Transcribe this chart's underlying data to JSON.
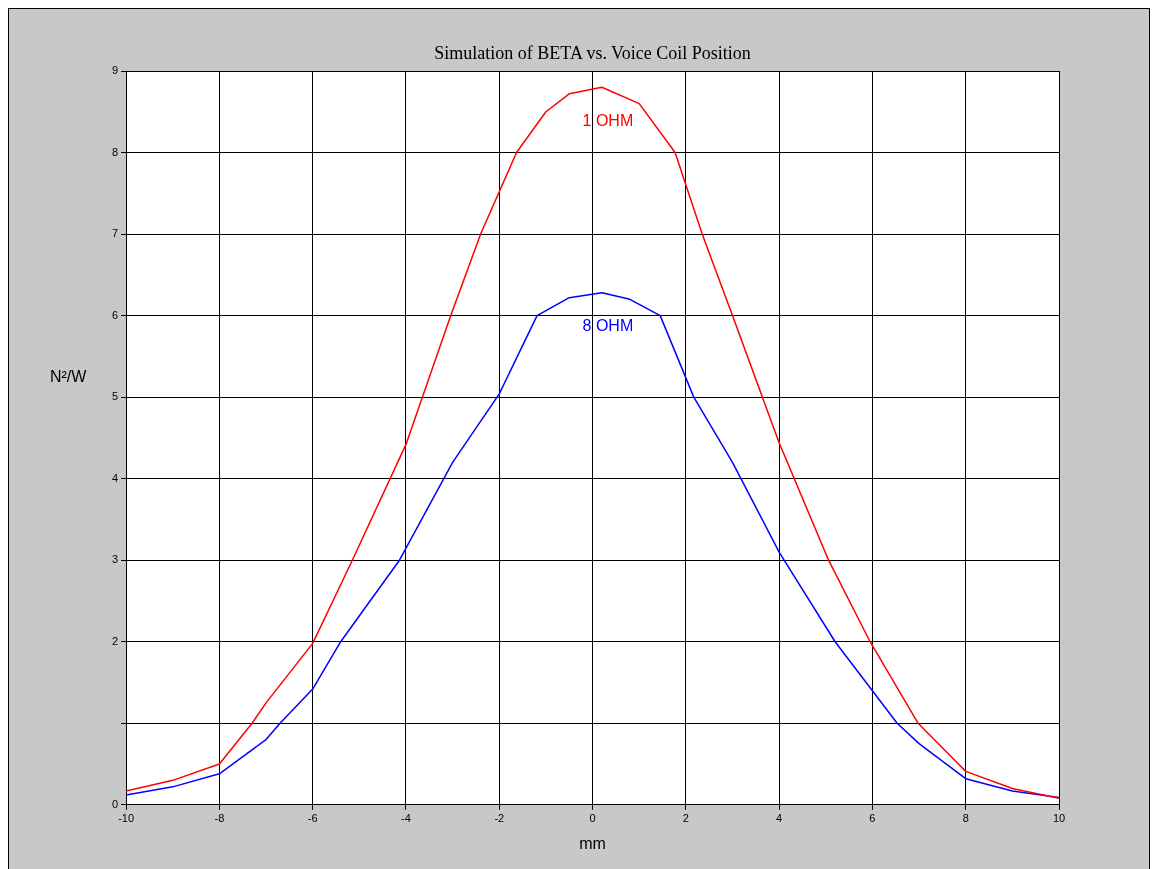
{
  "chart_data": {
    "type": "line",
    "title": "Simulation of BETA vs. Voice Coil Position",
    "xlabel": "mm",
    "ylabel": "N²/W",
    "xlim": [
      -10,
      10
    ],
    "xticks": [
      -10,
      -8,
      -6,
      -4,
      -2,
      0,
      2,
      4,
      6,
      8,
      10
    ],
    "ylim": [
      0,
      9
    ],
    "yticks": [
      0,
      {
        "value": 1,
        "label": null
      },
      2,
      3,
      4,
      5,
      6,
      7,
      8,
      9
    ],
    "grid": true,
    "legend": false,
    "marker": "none",
    "line_style": "solid",
    "series": [
      {
        "name": "1 OHM",
        "color": "#ff0000",
        "x": [
          -10,
          -9,
          -8,
          -7.3,
          -7,
          -6,
          -5.15,
          -4,
          -3.04,
          -2.4,
          -1.63,
          -1,
          -0.5,
          0.2,
          1,
          1.77,
          2.35,
          3,
          4,
          5.06,
          5.95,
          6.98,
          8,
          9,
          10
        ],
        "values": [
          0.17,
          0.3,
          0.5,
          1.0,
          1.25,
          1.98,
          3.0,
          4.42,
          6.0,
          7.0,
          8.0,
          8.5,
          8.72,
          8.8,
          8.6,
          8.0,
          7.0,
          6.0,
          4.44,
          3.0,
          2.0,
          1.0,
          0.41,
          0.2,
          0.08
        ]
      },
      {
        "name": "8 OHM",
        "color": "#0000ff",
        "x": [
          -10,
          -9,
          -8,
          -7,
          -6.7,
          -6,
          -5.4,
          -4.14,
          -3,
          -2,
          -1.19,
          -0.5,
          0.2,
          0.8,
          1.45,
          2.17,
          3,
          4,
          5.2,
          6.53,
          7,
          8,
          9,
          10
        ],
        "values": [
          0.12,
          0.22,
          0.38,
          0.8,
          1.0,
          1.42,
          2.0,
          3.0,
          4.2,
          5.04,
          6.0,
          6.22,
          6.28,
          6.2,
          6.0,
          5.0,
          4.2,
          3.1,
          2.0,
          1.0,
          0.75,
          0.32,
          0.17,
          0.09
        ]
      }
    ]
  }
}
